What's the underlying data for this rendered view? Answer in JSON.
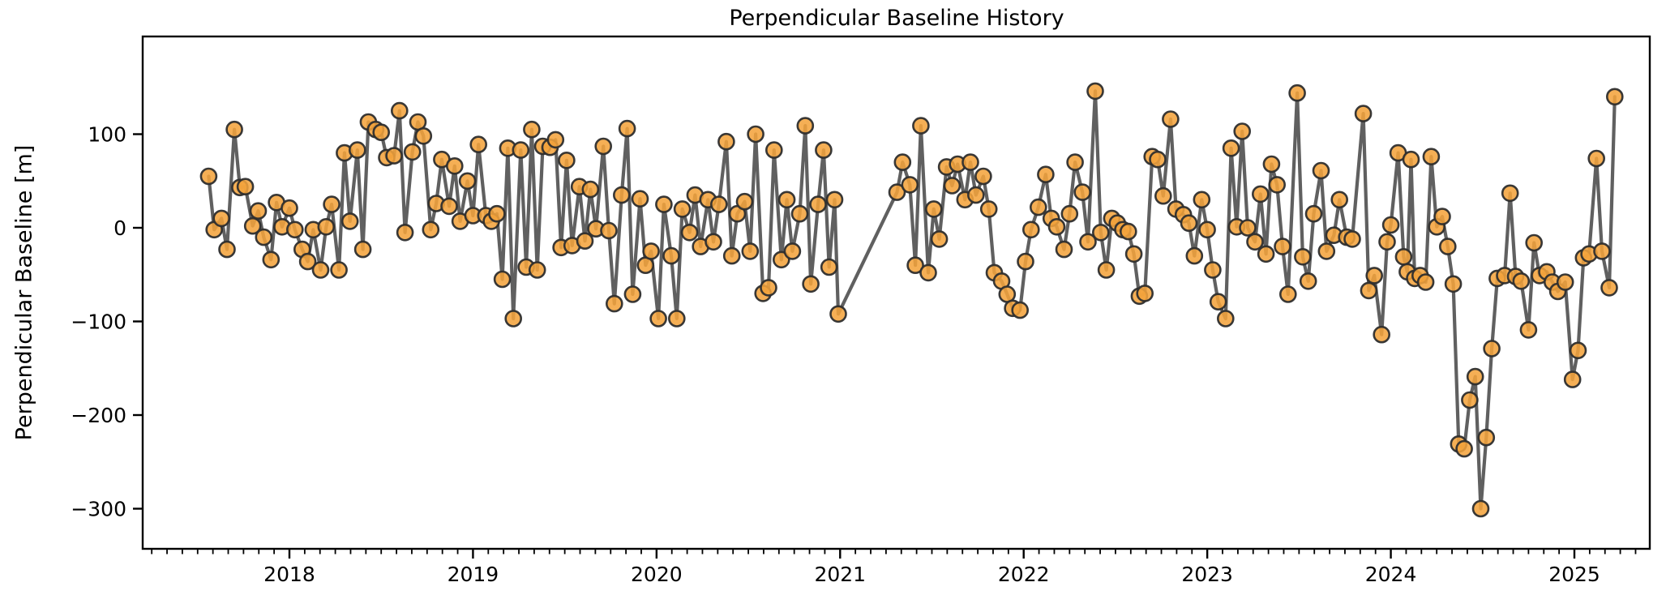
{
  "figure": {
    "title": "Perpendicular Baseline History"
  },
  "chart_data": {
    "type": "line",
    "title": "Perpendicular Baseline History",
    "xlabel": "",
    "ylabel": "Perpendicular Baseline [m]",
    "x_unit": "decimal_year",
    "xlim": [
      2017.23,
      2025.41
    ],
    "ylim": [
      -345,
      204
    ],
    "grid": false,
    "legend": null,
    "marker": "circle",
    "data_gap": {
      "from": 2020.99,
      "to": 2021.31
    },
    "x_ticks": [
      {
        "value": 2018,
        "label": "2018"
      },
      {
        "value": 2019,
        "label": "2019"
      },
      {
        "value": 2020,
        "label": "2020"
      },
      {
        "value": 2021,
        "label": "2021"
      },
      {
        "value": 2022,
        "label": "2022"
      },
      {
        "value": 2023,
        "label": "2023"
      },
      {
        "value": 2024,
        "label": "2024"
      },
      {
        "value": 2025,
        "label": "2025"
      }
    ],
    "x_minor_ticks": "monthly",
    "y_ticks": [
      {
        "value": 100,
        "label": "100"
      },
      {
        "value": 0,
        "label": "0"
      },
      {
        "value": -100,
        "label": "−100"
      },
      {
        "value": -200,
        "label": "−200"
      },
      {
        "value": -300,
        "label": "−300"
      }
    ],
    "style": {
      "marker_fill": "#f3a33c",
      "marker_edge": "#2e2e2e",
      "line_color": "#4a4a4a",
      "marker_radius": 9.5,
      "marker_edge_width": 2.6,
      "line_width": 4.2,
      "spine_color": "#000000",
      "background": "#ffffff"
    },
    "series": [
      {
        "name": "perpendicular-baseline",
        "points": [
          [
            2017.56,
            55
          ],
          [
            2017.59,
            -2
          ],
          [
            2017.63,
            10
          ],
          [
            2017.66,
            -23
          ],
          [
            2017.7,
            105
          ],
          [
            2017.73,
            43
          ],
          [
            2017.76,
            44
          ],
          [
            2017.8,
            2
          ],
          [
            2017.83,
            18
          ],
          [
            2017.86,
            -10
          ],
          [
            2017.9,
            -34
          ],
          [
            2017.93,
            27
          ],
          [
            2017.96,
            1
          ],
          [
            2018.0,
            21
          ],
          [
            2018.03,
            -2
          ],
          [
            2018.07,
            -23
          ],
          [
            2018.1,
            -36
          ],
          [
            2018.13,
            -2
          ],
          [
            2018.17,
            -45
          ],
          [
            2018.2,
            1
          ],
          [
            2018.23,
            25
          ],
          [
            2018.27,
            -45
          ],
          [
            2018.3,
            80
          ],
          [
            2018.33,
            7
          ],
          [
            2018.37,
            83
          ],
          [
            2018.4,
            -23
          ],
          [
            2018.43,
            113
          ],
          [
            2018.47,
            105
          ],
          [
            2018.5,
            102
          ],
          [
            2018.53,
            75
          ],
          [
            2018.57,
            77
          ],
          [
            2018.6,
            125
          ],
          [
            2018.63,
            -5
          ],
          [
            2018.67,
            81
          ],
          [
            2018.7,
            113
          ],
          [
            2018.73,
            98
          ],
          [
            2018.77,
            -2
          ],
          [
            2018.8,
            26
          ],
          [
            2018.83,
            73
          ],
          [
            2018.87,
            23
          ],
          [
            2018.9,
            66
          ],
          [
            2018.93,
            7
          ],
          [
            2018.97,
            50
          ],
          [
            2019.0,
            13
          ],
          [
            2019.03,
            89
          ],
          [
            2019.07,
            13
          ],
          [
            2019.1,
            7
          ],
          [
            2019.13,
            15
          ],
          [
            2019.16,
            -55
          ],
          [
            2019.19,
            85
          ],
          [
            2019.22,
            -97
          ],
          [
            2019.26,
            83
          ],
          [
            2019.29,
            -42
          ],
          [
            2019.32,
            105
          ],
          [
            2019.35,
            -45
          ],
          [
            2019.38,
            87
          ],
          [
            2019.42,
            86
          ],
          [
            2019.45,
            94
          ],
          [
            2019.48,
            -21
          ],
          [
            2019.51,
            72
          ],
          [
            2019.54,
            -19
          ],
          [
            2019.58,
            44
          ],
          [
            2019.61,
            -14
          ],
          [
            2019.64,
            41
          ],
          [
            2019.67,
            -1
          ],
          [
            2019.71,
            87
          ],
          [
            2019.74,
            -3
          ],
          [
            2019.77,
            -81
          ],
          [
            2019.81,
            35
          ],
          [
            2019.84,
            106
          ],
          [
            2019.87,
            -71
          ],
          [
            2019.91,
            31
          ],
          [
            2019.94,
            -40
          ],
          [
            2019.97,
            -25
          ],
          [
            2020.01,
            -97
          ],
          [
            2020.04,
            25
          ],
          [
            2020.08,
            -30
          ],
          [
            2020.11,
            -97
          ],
          [
            2020.14,
            20
          ],
          [
            2020.18,
            -5
          ],
          [
            2020.21,
            35
          ],
          [
            2020.24,
            -20
          ],
          [
            2020.28,
            30
          ],
          [
            2020.31,
            -15
          ],
          [
            2020.34,
            25
          ],
          [
            2020.38,
            92
          ],
          [
            2020.41,
            -30
          ],
          [
            2020.44,
            15
          ],
          [
            2020.48,
            28
          ],
          [
            2020.51,
            -25
          ],
          [
            2020.54,
            100
          ],
          [
            2020.58,
            -70
          ],
          [
            2020.61,
            -64
          ],
          [
            2020.64,
            83
          ],
          [
            2020.68,
            -34
          ],
          [
            2020.71,
            30
          ],
          [
            2020.74,
            -25
          ],
          [
            2020.78,
            15
          ],
          [
            2020.81,
            109
          ],
          [
            2020.84,
            -60
          ],
          [
            2020.88,
            25
          ],
          [
            2020.91,
            83
          ],
          [
            2020.94,
            -42
          ],
          [
            2020.97,
            30
          ],
          [
            2020.99,
            -92
          ],
          [
            2021.31,
            38
          ],
          [
            2021.34,
            70
          ],
          [
            2021.38,
            46
          ],
          [
            2021.41,
            -40
          ],
          [
            2021.44,
            109
          ],
          [
            2021.48,
            -48
          ],
          [
            2021.51,
            20
          ],
          [
            2021.54,
            -12
          ],
          [
            2021.58,
            65
          ],
          [
            2021.61,
            45
          ],
          [
            2021.64,
            68
          ],
          [
            2021.68,
            30
          ],
          [
            2021.71,
            70
          ],
          [
            2021.74,
            35
          ],
          [
            2021.78,
            55
          ],
          [
            2021.81,
            20
          ],
          [
            2021.84,
            -48
          ],
          [
            2021.88,
            -57
          ],
          [
            2021.91,
            -71
          ],
          [
            2021.94,
            -86
          ],
          [
            2021.98,
            -88
          ],
          [
            2022.01,
            -36
          ],
          [
            2022.04,
            -2
          ],
          [
            2022.08,
            22
          ],
          [
            2022.12,
            57
          ],
          [
            2022.15,
            10
          ],
          [
            2022.18,
            1
          ],
          [
            2022.22,
            -23
          ],
          [
            2022.25,
            15
          ],
          [
            2022.28,
            70
          ],
          [
            2022.32,
            38
          ],
          [
            2022.35,
            -15
          ],
          [
            2022.39,
            146
          ],
          [
            2022.42,
            -5
          ],
          [
            2022.45,
            -45
          ],
          [
            2022.48,
            10
          ],
          [
            2022.51,
            5
          ],
          [
            2022.54,
            -2
          ],
          [
            2022.57,
            -4
          ],
          [
            2022.6,
            -28
          ],
          [
            2022.63,
            -73
          ],
          [
            2022.66,
            -70
          ],
          [
            2022.7,
            76
          ],
          [
            2022.73,
            73
          ],
          [
            2022.76,
            34
          ],
          [
            2022.8,
            116
          ],
          [
            2022.83,
            20
          ],
          [
            2022.87,
            14
          ],
          [
            2022.9,
            5
          ],
          [
            2022.93,
            -30
          ],
          [
            2022.97,
            30
          ],
          [
            2023.0,
            -2
          ],
          [
            2023.03,
            -45
          ],
          [
            2023.06,
            -79
          ],
          [
            2023.1,
            -97
          ],
          [
            2023.13,
            85
          ],
          [
            2023.16,
            1
          ],
          [
            2023.19,
            103
          ],
          [
            2023.22,
            0
          ],
          [
            2023.26,
            -15
          ],
          [
            2023.29,
            36
          ],
          [
            2023.32,
            -28
          ],
          [
            2023.35,
            68
          ],
          [
            2023.38,
            46
          ],
          [
            2023.41,
            -20
          ],
          [
            2023.44,
            -71
          ],
          [
            2023.49,
            144
          ],
          [
            2023.52,
            -31
          ],
          [
            2023.55,
            -57
          ],
          [
            2023.58,
            15
          ],
          [
            2023.62,
            61
          ],
          [
            2023.65,
            -25
          ],
          [
            2023.69,
            -8
          ],
          [
            2023.72,
            30
          ],
          [
            2023.76,
            -10
          ],
          [
            2023.79,
            -12
          ],
          [
            2023.85,
            122
          ],
          [
            2023.88,
            -67
          ],
          [
            2023.91,
            -51
          ],
          [
            2023.95,
            -114
          ],
          [
            2023.98,
            -15
          ],
          [
            2024.0,
            3
          ],
          [
            2024.04,
            80
          ],
          [
            2024.07,
            -31
          ],
          [
            2024.09,
            -47
          ],
          [
            2024.11,
            73
          ],
          [
            2024.13,
            -54
          ],
          [
            2024.16,
            -51
          ],
          [
            2024.19,
            -58
          ],
          [
            2024.22,
            76
          ],
          [
            2024.25,
            1
          ],
          [
            2024.28,
            12
          ],
          [
            2024.31,
            -20
          ],
          [
            2024.34,
            -60
          ],
          [
            2024.37,
            -231
          ],
          [
            2024.4,
            -236
          ],
          [
            2024.43,
            -184
          ],
          [
            2024.46,
            -159
          ],
          [
            2024.49,
            -300
          ],
          [
            2024.52,
            -224
          ],
          [
            2024.55,
            -129
          ],
          [
            2024.58,
            -54
          ],
          [
            2024.62,
            -51
          ],
          [
            2024.65,
            37
          ],
          [
            2024.68,
            -52
          ],
          [
            2024.71,
            -57
          ],
          [
            2024.75,
            -109
          ],
          [
            2024.78,
            -16
          ],
          [
            2024.81,
            -51
          ],
          [
            2024.85,
            -47
          ],
          [
            2024.88,
            -58
          ],
          [
            2024.91,
            -68
          ],
          [
            2024.95,
            -58
          ],
          [
            2024.99,
            -162
          ],
          [
            2025.02,
            -131
          ],
          [
            2025.05,
            -32
          ],
          [
            2025.08,
            -28
          ],
          [
            2025.12,
            74
          ],
          [
            2025.15,
            -25
          ],
          [
            2025.19,
            -64
          ],
          [
            2025.22,
            140
          ]
        ]
      }
    ]
  }
}
